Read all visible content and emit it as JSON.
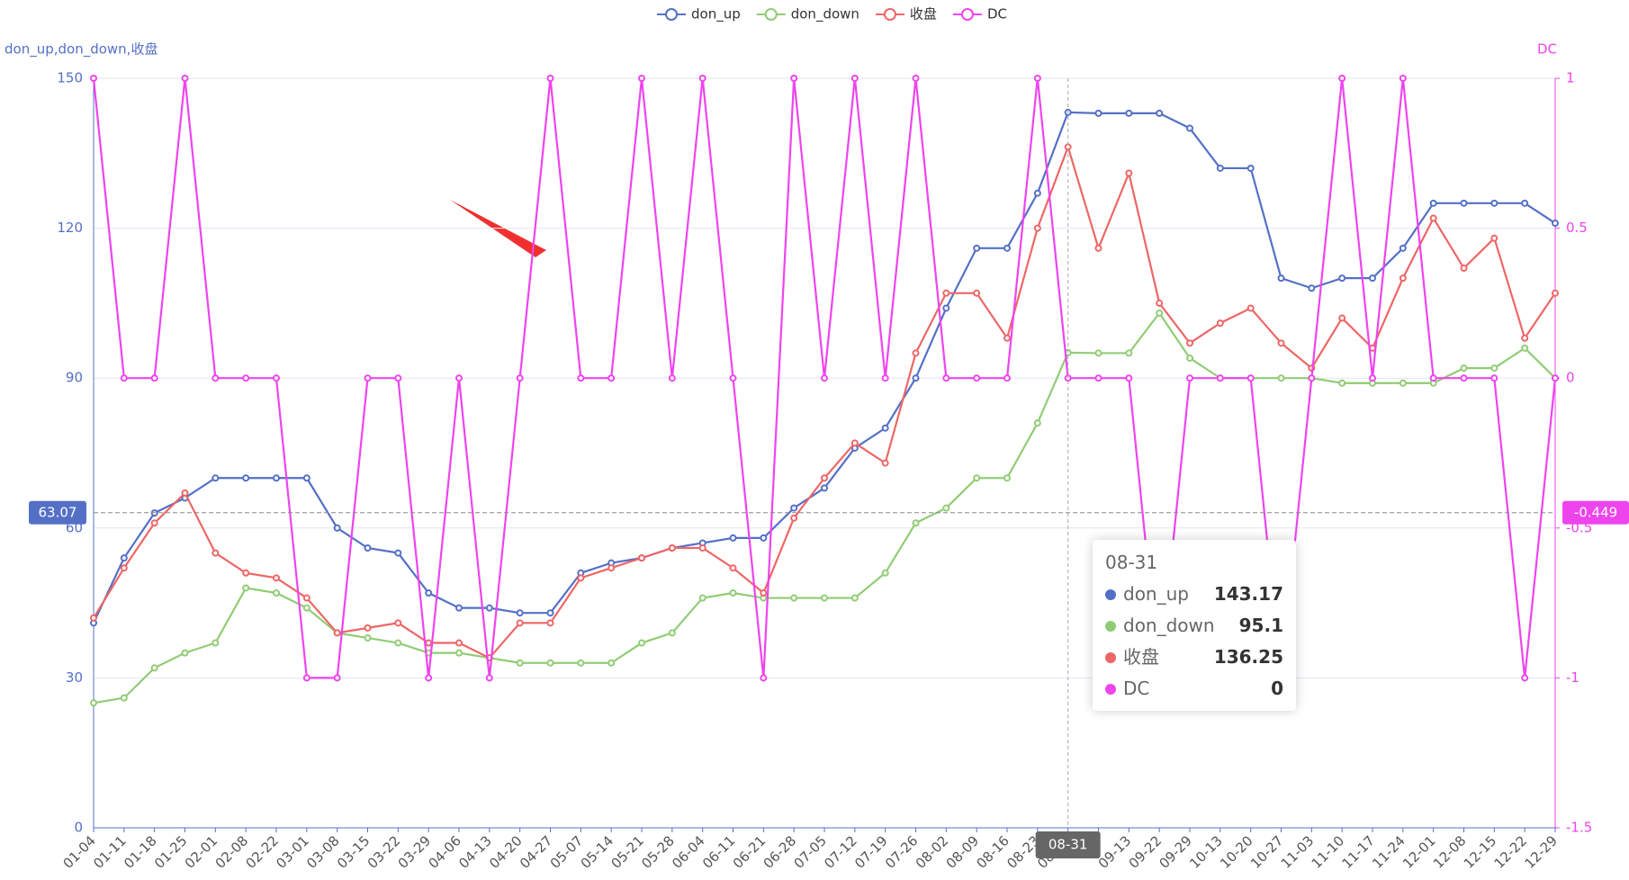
{
  "chart_data": {
    "type": "line",
    "y_axis_name": "don_up,don_down,收盘",
    "y2_axis_name": "DC",
    "categories": [
      "01-04",
      "01-11",
      "01-18",
      "01-25",
      "02-01",
      "02-08",
      "02-22",
      "03-01",
      "03-08",
      "03-15",
      "03-22",
      "03-29",
      "04-06",
      "04-13",
      "04-20",
      "04-27",
      "05-07",
      "05-14",
      "05-21",
      "05-28",
      "06-04",
      "06-11",
      "06-21",
      "06-28",
      "07-05",
      "07-12",
      "07-19",
      "07-26",
      "08-02",
      "08-09",
      "08-16",
      "08-23",
      "08-31",
      null,
      "09-13",
      "09-22",
      "09-29",
      "10-13",
      "10-20",
      "10-27",
      "11-03",
      "11-10",
      "11-17",
      "11-24",
      "12-01",
      "12-08",
      "12-15",
      "12-22",
      "12-29"
    ],
    "series": [
      {
        "name": "don_up",
        "color": "#5470c6",
        "values": [
          41,
          54,
          63,
          66,
          70,
          70,
          70,
          70,
          60,
          56,
          55,
          47,
          44,
          44,
          43,
          43,
          51,
          53,
          54,
          56,
          57,
          58,
          58,
          64,
          68,
          76,
          80,
          90,
          104,
          116,
          116,
          127,
          143.17,
          143,
          143,
          143,
          140,
          132,
          132,
          110,
          108,
          110,
          110,
          116,
          125,
          125,
          125,
          125,
          121
        ]
      },
      {
        "name": "don_down",
        "color": "#91cc75",
        "values": [
          25,
          26,
          32,
          35,
          37,
          48,
          47,
          44,
          39,
          38,
          37,
          35,
          35,
          34,
          33,
          33,
          33,
          33,
          37,
          39,
          46,
          47,
          46,
          46,
          46,
          46,
          51,
          61,
          64,
          70,
          70,
          81,
          95.1,
          95,
          95,
          103,
          94,
          90,
          90,
          90,
          90,
          89,
          89,
          89,
          89,
          92,
          92,
          96,
          90
        ]
      },
      {
        "name": "收盘",
        "color": "#ee6666",
        "values": [
          42,
          52,
          61,
          67,
          55,
          51,
          50,
          46,
          39,
          40,
          41,
          37,
          37,
          34,
          41,
          41,
          50,
          52,
          54,
          56,
          56,
          52,
          47,
          62,
          70,
          77,
          73,
          95,
          107,
          107,
          98,
          120,
          136.25,
          116,
          131,
          105,
          97,
          101,
          104,
          97,
          92,
          102,
          96,
          110,
          122,
          112,
          118,
          98,
          107
        ]
      },
      {
        "name": "DC",
        "color": "#ee44ee",
        "axis": "y2",
        "values": [
          1,
          0,
          0,
          1,
          0,
          0,
          0,
          -1,
          -1,
          0,
          0,
          -1,
          0,
          -1,
          0,
          1,
          0,
          0,
          1,
          0,
          1,
          0,
          -1,
          1,
          0,
          1,
          0,
          1,
          0,
          0,
          0,
          1,
          0,
          0,
          0,
          -1,
          0,
          0,
          0,
          -1,
          0,
          1,
          0,
          1,
          0,
          0,
          0,
          -1,
          0
        ]
      }
    ],
    "ylim": [
      0,
      150
    ],
    "yticks": [
      0,
      30,
      60,
      90,
      120,
      150
    ],
    "y2lim": [
      -1.5,
      1
    ],
    "y2ticks": [
      -1.5,
      -1,
      -0.5,
      0,
      0.5,
      1
    ],
    "grid": true,
    "axis_pointer": {
      "y": 63.07,
      "y2": -0.449
    }
  }
}
